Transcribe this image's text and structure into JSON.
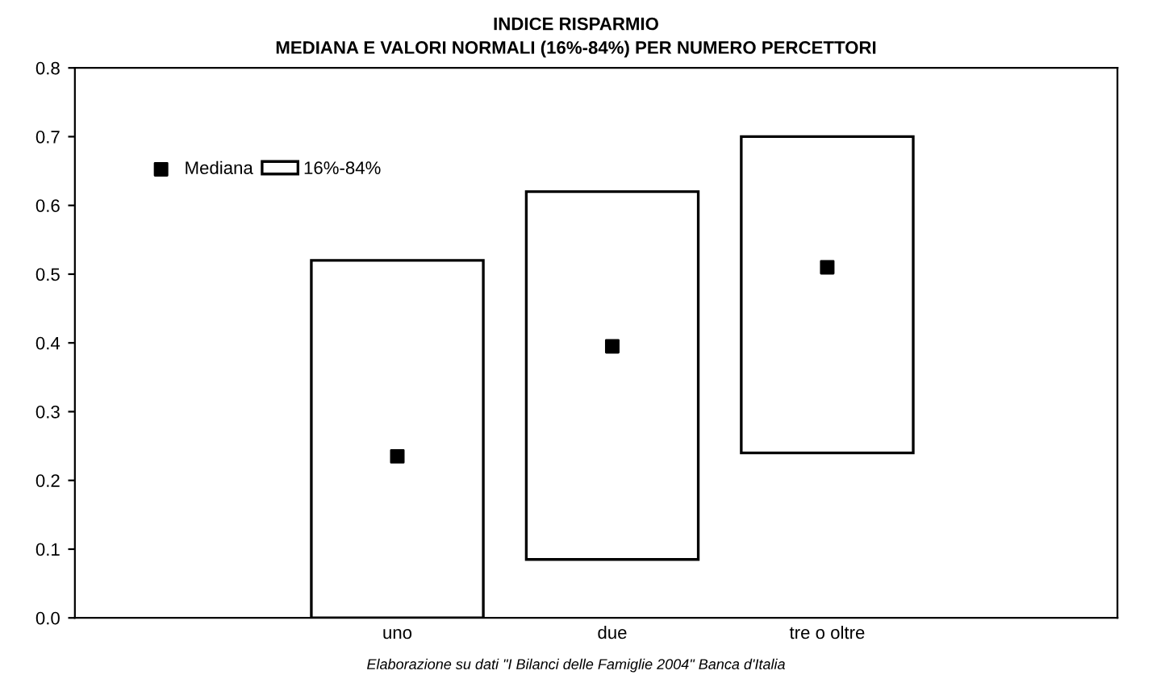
{
  "chart_data": {
    "type": "bar",
    "title": "INDICE RISPARMIO",
    "subtitle": "MEDIANA E VALORI NORMALI (16%-84%) PER NUMERO PERCETTORI",
    "categories": [
      "uno",
      "due",
      "tre o oltre"
    ],
    "series": [
      {
        "name": "16%-84%",
        "color": "#ffffff",
        "base": [
          0,
          0.085,
          0.24
        ],
        "values": [
          0.52,
          0.535,
          0.46
        ]
      },
      {
        "name": "Mediana",
        "type": "scatter",
        "color": "#000000",
        "marker": "square",
        "x": [
          "uno",
          "due",
          "tre o oltre"
        ],
        "values": [
          0.235,
          0.395,
          0.51
        ]
      }
    ],
    "ylim": [
      0,
      0.8
    ],
    "yticks": [
      {
        "value": 0,
        "label": "0.0"
      },
      {
        "value": 0.1,
        "label": "0.1"
      },
      {
        "value": 0.2,
        "label": "0.2"
      },
      {
        "value": 0.3,
        "label": "0.3"
      },
      {
        "value": 0.4,
        "label": "0.4"
      },
      {
        "value": 0.5,
        "label": "0.5"
      },
      {
        "value": 0.6,
        "label": "0.6"
      },
      {
        "value": 0.7,
        "label": "0.7"
      },
      {
        "value": 0.8,
        "label": "0.8"
      }
    ],
    "grid": false,
    "legend": "top left",
    "annotations": [
      "Elaborazione su dati \"I Bilanci delle Famiglie 2004\" Banca d'Italia"
    ]
  }
}
